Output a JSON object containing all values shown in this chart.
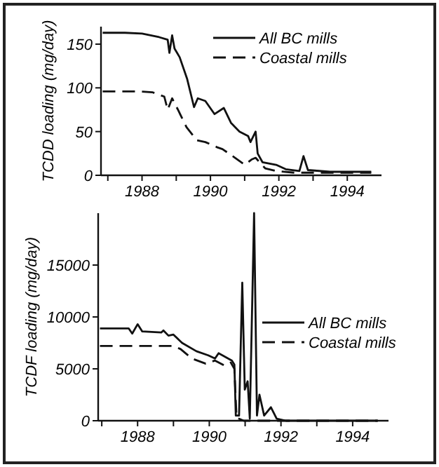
{
  "chart_data": [
    {
      "type": "line",
      "ylabel": "TCDD loading (mg/day)",
      "xlim": [
        1986.8,
        1995
      ],
      "ylim": [
        0,
        170
      ],
      "xticks": [
        {
          "value": 1987,
          "label": null
        },
        1988,
        {
          "value": 1989,
          "label": null
        },
        1990,
        {
          "value": 1991,
          "label": null
        },
        1992,
        {
          "value": 1993,
          "label": null
        },
        1994
      ],
      "yticks": [
        0,
        50,
        100,
        150
      ],
      "legend": "top right",
      "grid": false,
      "series": [
        {
          "name": "All BC mills",
          "color": "#111111",
          "line_style": "solid",
          "x": [
            1986.85,
            1987.5,
            1988,
            1988.5,
            1988.75,
            1988.8,
            1988.88,
            1988.95,
            1989.1,
            1989.32,
            1989.52,
            1989.63,
            1989.85,
            1990.12,
            1990.39,
            1990.6,
            1990.85,
            1991.1,
            1991.17,
            1991.32,
            1991.38,
            1991.52,
            1991.92,
            1992.2,
            1992.6,
            1992.72,
            1992.85,
            1993.5,
            1994.7
          ],
          "values": [
            163,
            163,
            162,
            158,
            155,
            140,
            160,
            145,
            135,
            110,
            78,
            88,
            85,
            70,
            77,
            60,
            50,
            45,
            38,
            50,
            25,
            15,
            12,
            7,
            5,
            22,
            6,
            4,
            4
          ]
        },
        {
          "name": "Coastal mills",
          "color": "#111111",
          "line_style": "dashed",
          "x": [
            1986.85,
            1987.9,
            1988.3,
            1988.65,
            1988.75,
            1988.88,
            1989.05,
            1989.3,
            1989.6,
            1989.85,
            1990.2,
            1990.35,
            1990.72,
            1991,
            1991.2,
            1991.32,
            1991.6,
            1991.92,
            1992.45,
            1994.7
          ],
          "values": [
            96,
            96,
            95,
            90,
            75,
            88,
            75,
            55,
            40,
            38,
            32,
            30,
            20,
            12,
            18,
            20,
            8,
            5,
            3,
            3
          ]
        }
      ]
    },
    {
      "type": "line",
      "ylabel": "TCDF loading (mg/day)",
      "xlim": [
        1986.9,
        1995
      ],
      "ylim": [
        0,
        20000
      ],
      "xticks": [
        {
          "value": 1987,
          "label": null
        },
        1988,
        {
          "value": 1989,
          "label": null
        },
        1990,
        {
          "value": 1991,
          "label": null
        },
        1992,
        {
          "value": 1993,
          "label": null
        },
        1994
      ],
      "yticks": [
        0,
        5000,
        10000,
        15000
      ],
      "legend": "right",
      "grid": false,
      "series": [
        {
          "name": "All BC mills",
          "color": "#111111",
          "line_style": "solid",
          "x": [
            1986.95,
            1987.75,
            1987.85,
            1988,
            1988.13,
            1988.66,
            1988.72,
            1988.86,
            1989,
            1989.24,
            1989.64,
            1989.97,
            1990.16,
            1990.26,
            1990.63,
            1990.7,
            1990.74,
            1990.83,
            1990.92,
            1990.99,
            1991.07,
            1991.13,
            1991.25,
            1991.33,
            1991.4,
            1991.53,
            1991.72,
            1991.88,
            1992.14,
            1994.7
          ],
          "values": [
            8900,
            8900,
            8400,
            9300,
            8600,
            8500,
            8700,
            8200,
            8300,
            7500,
            6700,
            6300,
            6000,
            6500,
            5800,
            5400,
            500,
            500,
            13300,
            3000,
            3800,
            200,
            20000,
            500,
            2500,
            500,
            1300,
            200,
            0,
            0
          ]
        },
        {
          "name": "Coastal mills",
          "color": "#111111",
          "line_style": "dashed",
          "x": [
            1986.95,
            1989,
            1989.2,
            1989.51,
            1989.9,
            1990.16,
            1990.43,
            1990.6,
            1990.7,
            1990.76,
            1990.96,
            1994.7
          ],
          "values": [
            7200,
            7200,
            6900,
            6000,
            5500,
            5800,
            5300,
            5600,
            5000,
            300,
            0,
            0
          ]
        }
      ]
    }
  ]
}
